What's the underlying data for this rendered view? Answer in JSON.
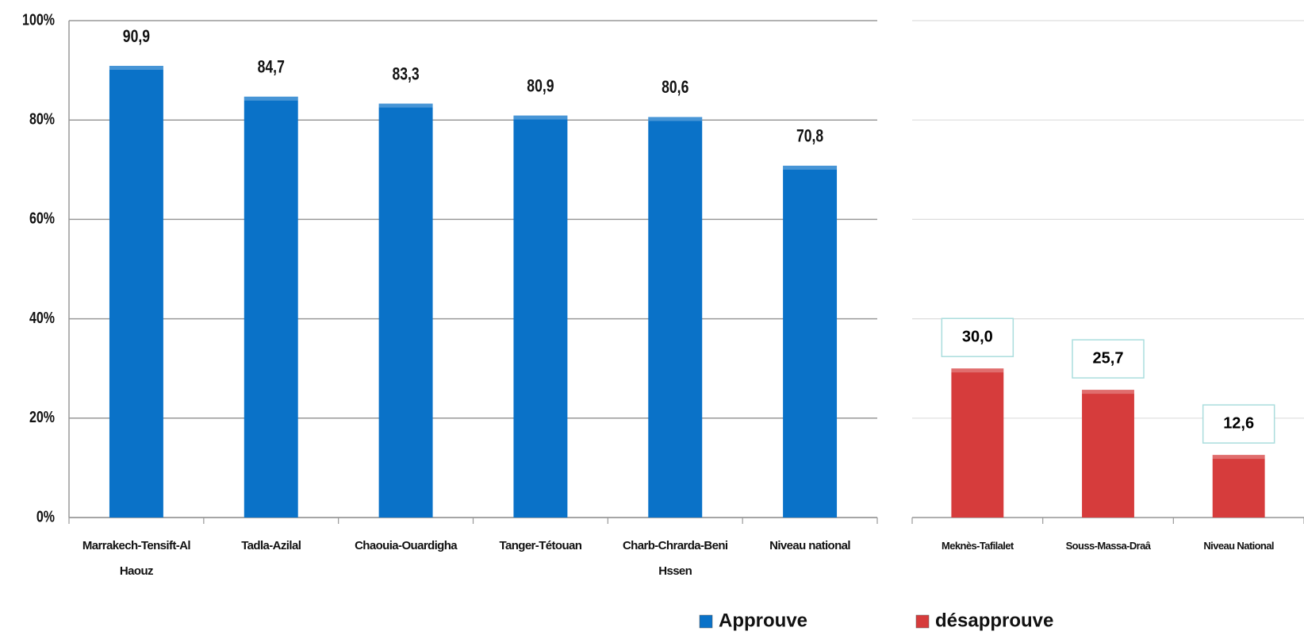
{
  "chart_data": [
    {
      "type": "bar",
      "categories": [
        "Marrakech-Tensift-Al Haouz",
        "Tadla-Azilal",
        "Chaouia-Ouardigha",
        "Tanger-Tétouan",
        "Charb-Chrarda-Beni Hssen",
        "Niveau national"
      ],
      "series": [
        {
          "name": "Approuve",
          "color": "#0a72c8",
          "values": [
            90.9,
            84.7,
            83.3,
            80.9,
            80.6,
            70.8
          ],
          "value_labels": [
            "90,9",
            "84,7",
            "83,3",
            "80,9",
            "80,6",
            "70,8"
          ]
        }
      ],
      "ylim": [
        0,
        100
      ],
      "yticks": [
        {
          "value": 0,
          "label": "0%"
        },
        {
          "value": 20,
          "label": "20%"
        },
        {
          "value": 40,
          "label": "40%"
        },
        {
          "value": 60,
          "label": "60%"
        },
        {
          "value": 80,
          "label": "80%"
        },
        {
          "value": 100,
          "label": "100%"
        }
      ],
      "grid": true,
      "legend": "bottom-right"
    },
    {
      "type": "bar",
      "categories": [
        "Meknès-Tafilalet",
        "Souss-Massa-Draâ",
        "Niveau National"
      ],
      "series": [
        {
          "name": "désapprouve",
          "color": "#d63c3c",
          "values": [
            30.0,
            25.7,
            12.6
          ],
          "value_labels": [
            "30,0",
            "25,7",
            "12,6"
          ]
        }
      ],
      "ylim": [
        0,
        100
      ],
      "yticks": [
        0,
        20,
        40,
        60,
        80,
        100
      ],
      "grid": true,
      "legend": "bottom-left",
      "boxed_labels": true
    }
  ]
}
